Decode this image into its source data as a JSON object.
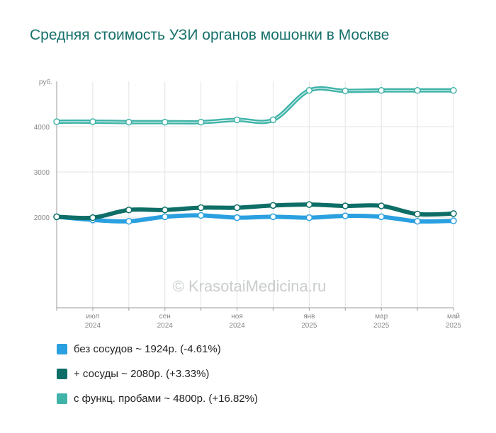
{
  "chart_data": {
    "type": "line",
    "title": "Средняя стоимость УЗИ органов мошонки в Москве",
    "ylabel": "руб.",
    "ylim": [
      0,
      5000
    ],
    "yticks": [
      2000,
      3000,
      4000
    ],
    "x": [
      "2024-06",
      "2024-07",
      "2024-08",
      "2024-09",
      "2024-10",
      "2024-11",
      "2024-12",
      "2025-01",
      "2025-02",
      "2025-03",
      "2025-04",
      "2025-05"
    ],
    "x_tick_labels": [
      {
        "month": "июл",
        "year": "2024",
        "index": 1
      },
      {
        "month": "сен",
        "year": "2024",
        "index": 3
      },
      {
        "month": "ноя",
        "year": "2024",
        "index": 5
      },
      {
        "month": "янв",
        "year": "2025",
        "index": 7
      },
      {
        "month": "мар",
        "year": "2025",
        "index": 9
      },
      {
        "month": "май",
        "year": "2025",
        "index": 11
      }
    ],
    "grid": true,
    "legend_position": "bottom",
    "watermark": "© KrasotaiMedicina.ru",
    "series": [
      {
        "name": "без сосудов ~ 1924р. (-4.61%)",
        "color": "#2aa0e0",
        "values": [
          2010,
          1940,
          1910,
          2010,
          2040,
          1990,
          2010,
          1990,
          2030,
          2010,
          1910,
          1920
        ]
      },
      {
        "name": "+ сосуды ~ 2080р. (+3.33%)",
        "color": "#0d6e67",
        "values": [
          2010,
          1990,
          2160,
          2160,
          2210,
          2210,
          2260,
          2280,
          2250,
          2250,
          2070,
          2080
        ]
      },
      {
        "name": "с функц. пробами ~ 4800р. (+16.82%)",
        "color": "#3fb3a8",
        "values": [
          4110,
          4110,
          4100,
          4100,
          4100,
          4150,
          4150,
          4800,
          4790,
          4800,
          4800,
          4800
        ]
      }
    ]
  }
}
